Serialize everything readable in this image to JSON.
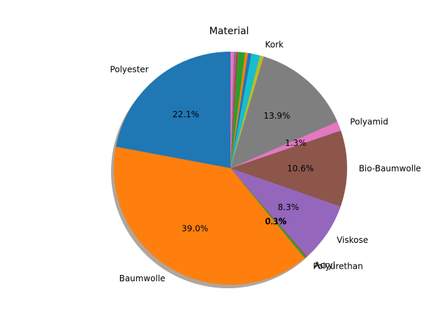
{
  "chart_data": {
    "type": "pie",
    "title": "Material",
    "start_angle_deg": 90,
    "direction": "counterclockwise",
    "shadow": true,
    "legend": "none",
    "slices": [
      {
        "label": "Polyester",
        "value": 22.1,
        "pct": "22.1%",
        "color": "#1f77b4"
      },
      {
        "label": "Baumwolle",
        "value": 39.0,
        "pct": "39.0%",
        "color": "#ff7f0e"
      },
      {
        "label": "Polyurethan",
        "value": 0.3,
        "pct": "0.3%",
        "color": "#2ca02c"
      },
      {
        "label": "Acryl",
        "value": 0.1,
        "pct": "0.1%",
        "color": "#d62728"
      },
      {
        "label": "Viskose",
        "value": 8.3,
        "pct": "8.3%",
        "color": "#9467bd"
      },
      {
        "label": "Bio-Baumwolle",
        "value": 10.6,
        "pct": "10.6%",
        "color": "#8c564b"
      },
      {
        "label": "Polyamid",
        "value": 1.3,
        "pct": "1.3%",
        "color": "#e377c2"
      },
      {
        "label": "",
        "value": 13.9,
        "pct": "13.9%",
        "color": "#7f7f7f"
      },
      {
        "label": "Kork",
        "value": 0.5,
        "pct": "",
        "color": "#bcbd22"
      },
      {
        "label": "",
        "value": 1.2,
        "pct": "",
        "color": "#17becf"
      },
      {
        "label": "",
        "value": 0.5,
        "pct": "",
        "color": "#1f77b4"
      },
      {
        "label": "",
        "value": 0.4,
        "pct": "",
        "color": "#ff7f0e"
      },
      {
        "label": "",
        "value": 1.0,
        "pct": "",
        "color": "#2ca02c"
      },
      {
        "label": "",
        "value": 0.2,
        "pct": "",
        "color": "#d62728"
      },
      {
        "label": "",
        "value": 0.2,
        "pct": "",
        "color": "#9467bd"
      },
      {
        "label": "",
        "value": 0.1,
        "pct": "",
        "color": "#8c564b"
      },
      {
        "label": "",
        "value": 0.5,
        "pct": "",
        "color": "#e377c2"
      }
    ]
  }
}
